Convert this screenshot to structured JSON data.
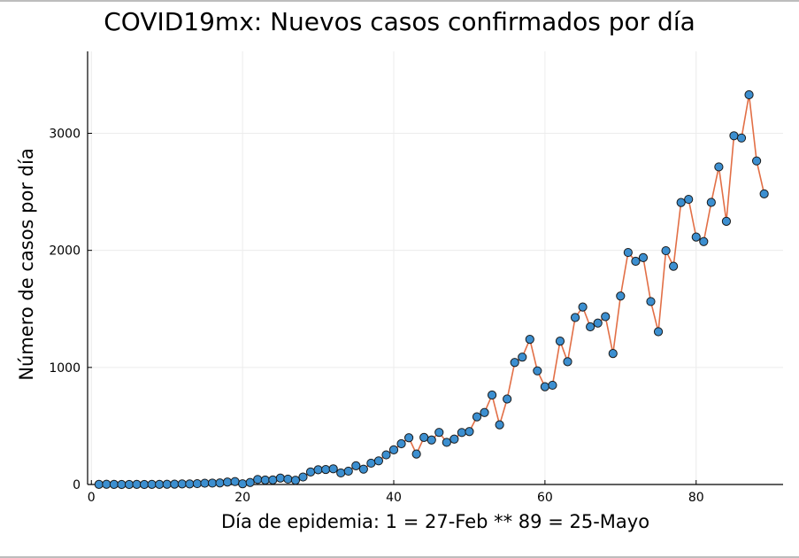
{
  "chart_data": {
    "type": "line",
    "title": "COVID19mx: Nuevos casos confirmados por día",
    "xlabel": "Día de epidemia: 1 = 27-Feb ** 89 = 25-Mayo",
    "ylabel": "Número de casos por día",
    "xlim": [
      -0.5,
      91.5
    ],
    "ylim": [
      0,
      3700
    ],
    "xticks": [
      0,
      20,
      40,
      60,
      80
    ],
    "yticks": [
      0,
      1000,
      2000,
      3000
    ],
    "grid": true,
    "legend": "none",
    "line_color": "#e26f46",
    "marker_color": "#3c8fd0",
    "marker_edge": "#1a1a1a",
    "series": [
      {
        "x": [
          1,
          2,
          3,
          4,
          5,
          6,
          7,
          8,
          9,
          10,
          11,
          12,
          13,
          14,
          15,
          16,
          17,
          18,
          19,
          20,
          21,
          22,
          23,
          24,
          25,
          26,
          27,
          28,
          29,
          30,
          31,
          32,
          33,
          34,
          35,
          36,
          37,
          38,
          39,
          40,
          41,
          42,
          43,
          44,
          45,
          46,
          47,
          48,
          49,
          50,
          51,
          52,
          53,
          54,
          55,
          56,
          57,
          58,
          59,
          60,
          61,
          62,
          63,
          64,
          65,
          66,
          67,
          68,
          69,
          70,
          71,
          72,
          73,
          74,
          75,
          76,
          77,
          78,
          79,
          80,
          81,
          82,
          83,
          84,
          85,
          86,
          87,
          88,
          89
        ],
        "values": [
          1,
          2,
          1,
          0,
          0,
          1,
          0,
          1,
          1,
          2,
          3,
          5,
          5,
          7,
          11,
          12,
          13,
          21,
          25,
          6,
          17,
          43,
          38,
          39,
          55,
          46,
          36,
          64,
          107,
          126,
          128,
          134,
          99,
          114,
          160,
          131,
          182,
          202,
          253,
          296,
          348,
          399,
          260,
          402,
          380,
          445,
          360,
          388,
          444,
          452,
          578,
          615,
          764,
          510,
          730,
          1042,
          1088,
          1240,
          971,
          835,
          848,
          1225,
          1049,
          1426,
          1516,
          1347,
          1379,
          1434,
          1119,
          1610,
          1982,
          1907,
          1938,
          1563,
          1305,
          1997,
          1864,
          2409,
          2436,
          2114,
          2075,
          2410,
          2713,
          2248,
          2979,
          2960,
          3329,
          2764,
          2483
        ]
      }
    ]
  }
}
